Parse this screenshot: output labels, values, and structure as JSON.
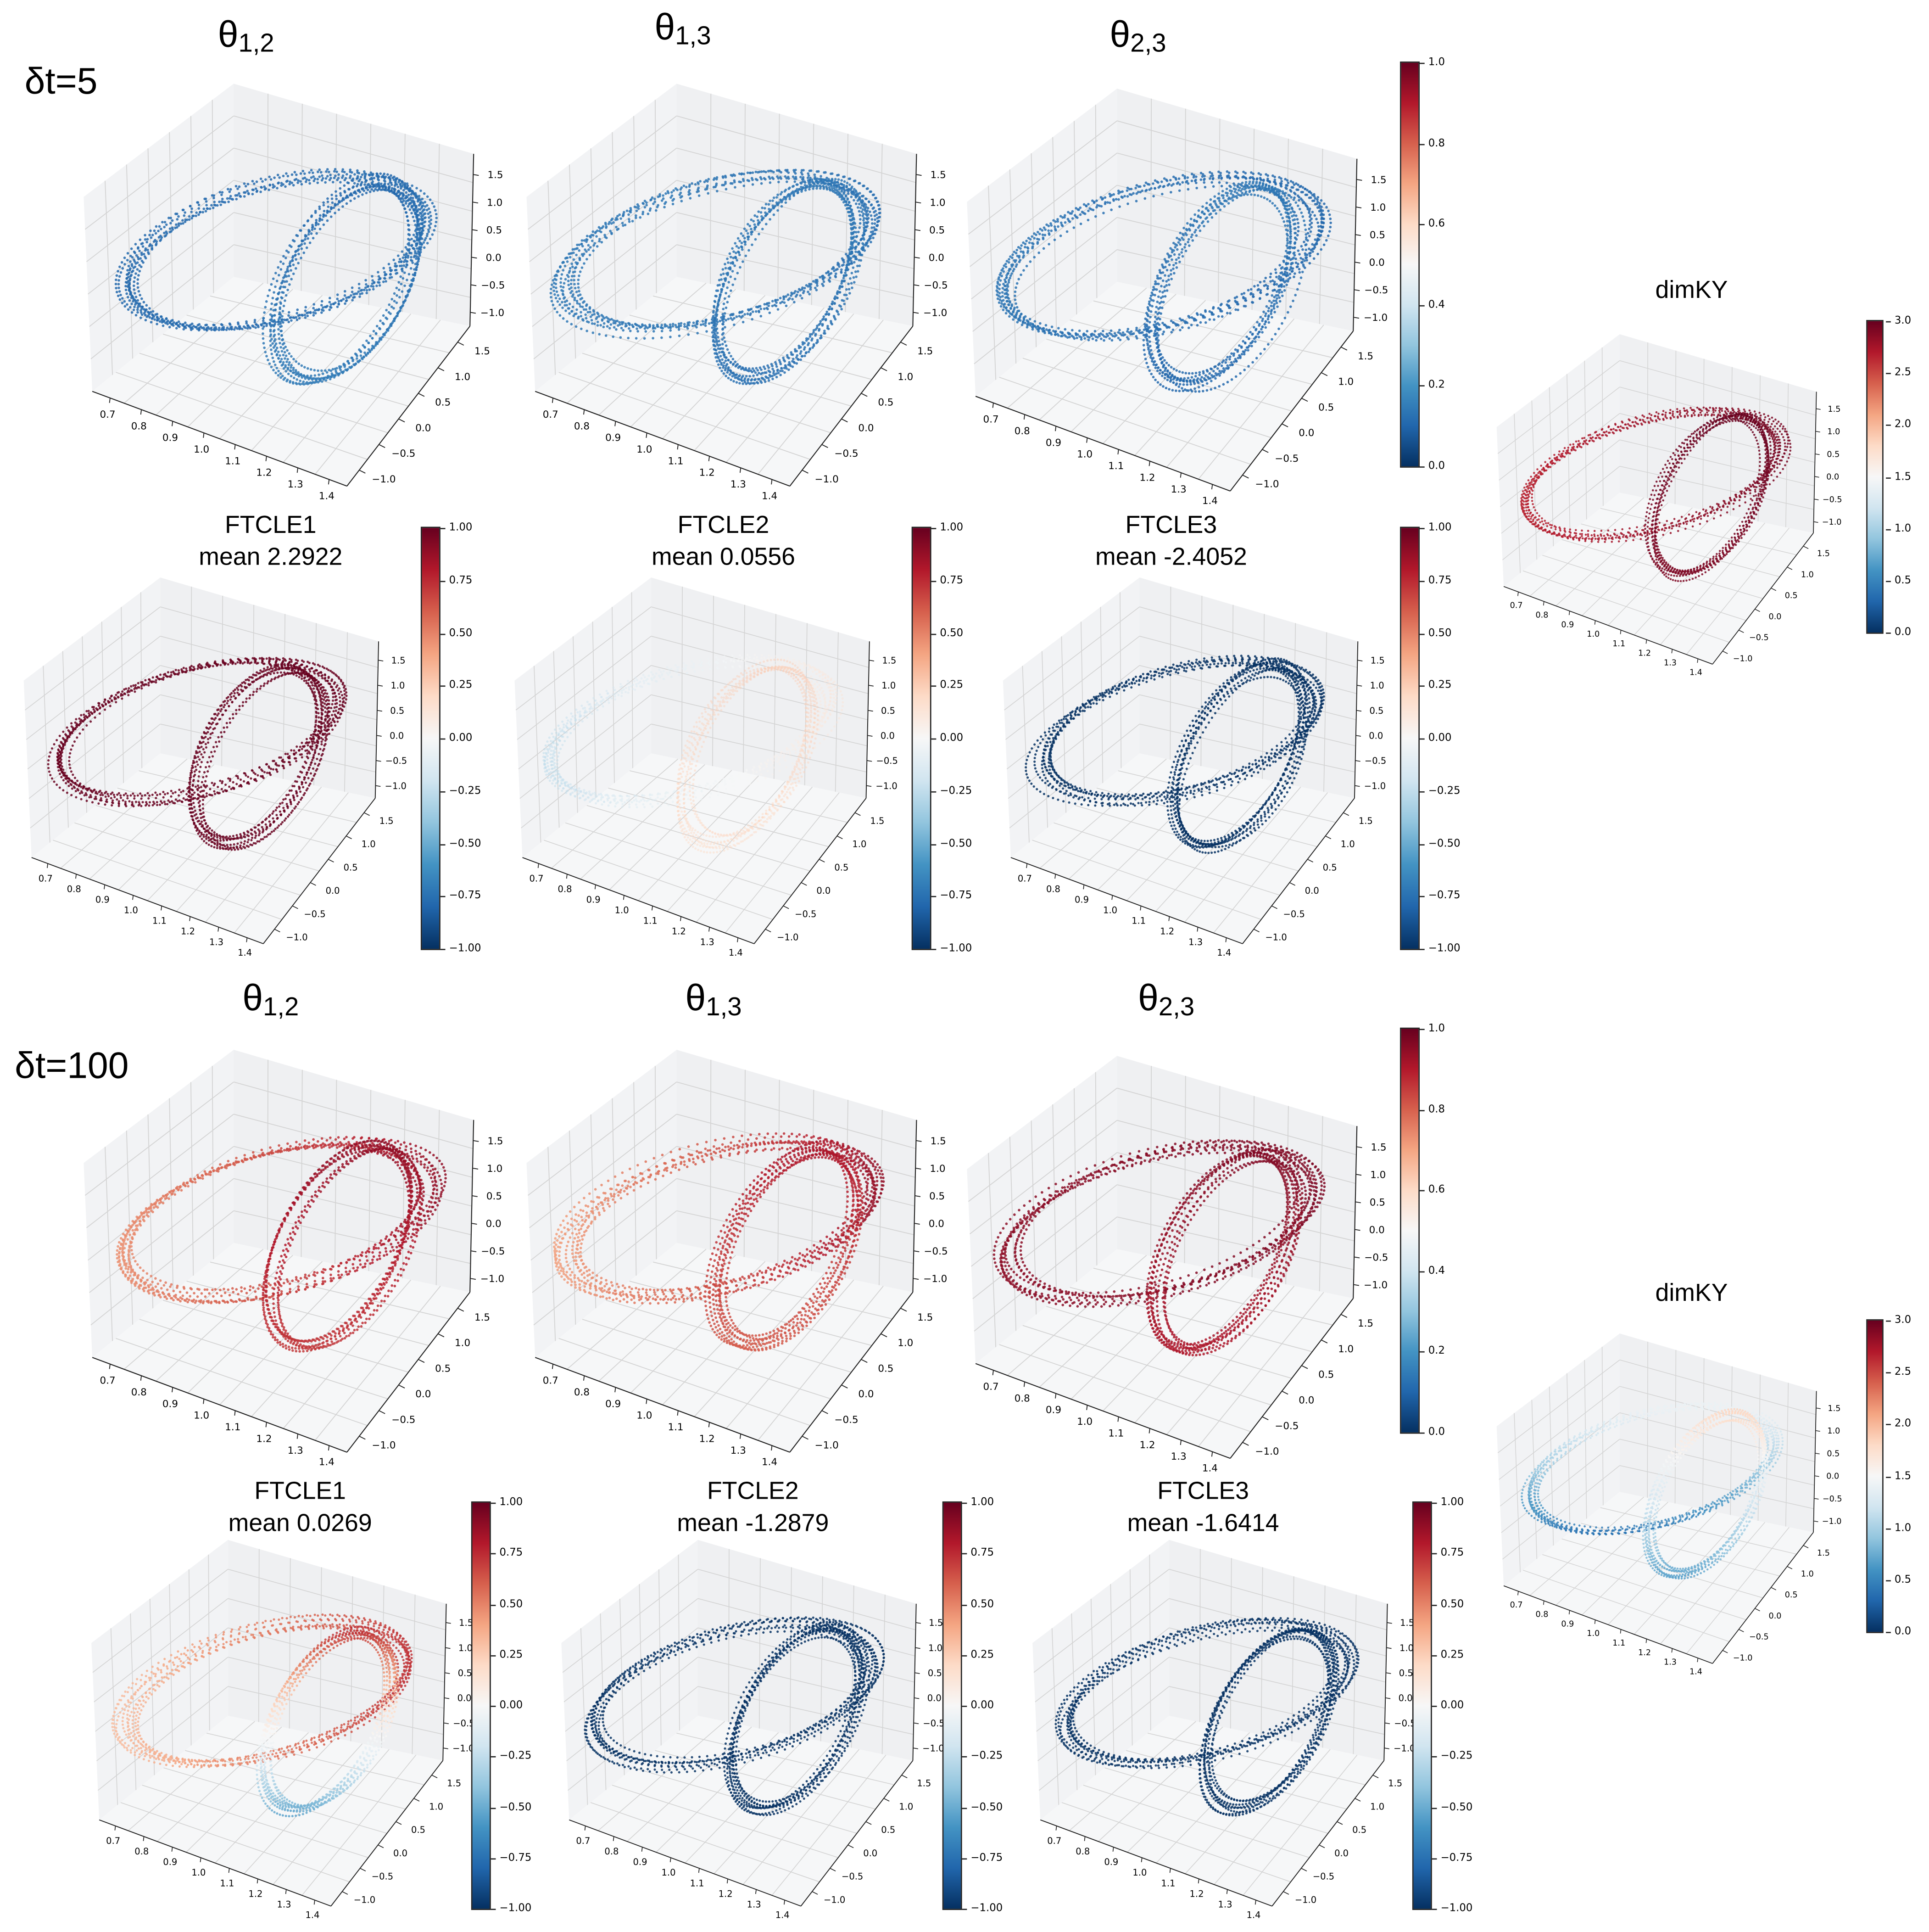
{
  "row_labels": [
    "δt=5",
    "δt=100"
  ],
  "chart_data": [
    {
      "type": "scatter3d",
      "title": "θ",
      "title_sub": "1,2",
      "xticks": [
        "0.7",
        "0.8",
        "0.9",
        "1.0",
        "1.1",
        "1.2",
        "1.3",
        "1.4"
      ],
      "yticks": [
        "−1.0",
        "−0.5",
        "0.0",
        "0.5",
        "1.0",
        "1.5"
      ],
      "zticks": [
        "−1.0",
        "−0.5",
        "0.0",
        "0.5",
        "1.0",
        "1.5"
      ],
      "crange": [
        0,
        1
      ],
      "colors": {
        "big": {
          "dir": "x",
          "values": [
            0.1,
            0.12
          ]
        },
        "small": {
          "dir": "y",
          "values": [
            0.1,
            0.15
          ]
        }
      }
    },
    {
      "type": "scatter3d",
      "title": "θ",
      "title_sub": "1,3",
      "xticks": [
        "0.7",
        "0.8",
        "0.9",
        "1.0",
        "1.1",
        "1.2",
        "1.3",
        "1.4"
      ],
      "yticks": [
        "−1.0",
        "−0.5",
        "0.0",
        "0.5",
        "1.0",
        "1.5"
      ],
      "zticks": [
        "−1.0",
        "−0.5",
        "0.0",
        "0.5",
        "1.0",
        "1.5"
      ],
      "crange": [
        0,
        1
      ],
      "colors": {
        "big": {
          "dir": "x",
          "values": [
            0.14,
            0.12
          ]
        },
        "small": {
          "dir": "y",
          "values": [
            0.14,
            0.12
          ]
        }
      }
    },
    {
      "type": "scatter3d",
      "title": "θ",
      "title_sub": "2,3",
      "xticks": [
        "0.7",
        "0.8",
        "0.9",
        "1.0",
        "1.1",
        "1.2",
        "1.3",
        "1.4"
      ],
      "yticks": [
        "−1.0",
        "−0.5",
        "0.0",
        "0.5",
        "1.0",
        "1.5"
      ],
      "zticks": [
        "−1.0",
        "−0.5",
        "0.0",
        "0.5",
        "1.0",
        "1.5"
      ],
      "crange": [
        0,
        1
      ],
      "colors": {
        "big": {
          "dir": "x",
          "values": [
            0.13,
            0.1
          ]
        },
        "small": {
          "dir": "y",
          "values": [
            0.14,
            0.1
          ]
        }
      },
      "colorbar": {
        "ticks": [
          "0.0",
          "0.2",
          "0.4",
          "0.6",
          "0.8",
          "1.0"
        ]
      }
    },
    {
      "type": "scatter3d",
      "title": "dimKY",
      "xticks": [
        "0.7",
        "0.8",
        "0.9",
        "1.0",
        "1.1",
        "1.2",
        "1.3",
        "1.4"
      ],
      "yticks": [
        "−1.0",
        "−0.5",
        "0.0",
        "0.5",
        "1.0",
        "1.5"
      ],
      "zticks": [
        "−1.0",
        "−0.5",
        "0.0",
        "0.5",
        "1.0",
        "1.5"
      ],
      "crange": [
        0,
        3
      ],
      "colors": {
        "big": {
          "dir": "x",
          "values": [
            2.65,
            2.95
          ]
        },
        "small": {
          "dir": "y",
          "values": [
            3.0,
            2.9
          ]
        }
      },
      "colorbar": {
        "ticks": [
          "0.0",
          "0.5",
          "1.0",
          "1.5",
          "2.0",
          "2.5",
          "3.0"
        ]
      }
    },
    {
      "type": "scatter3d",
      "title": "FTCLE1",
      "subtitle": "mean 2.2922",
      "xticks": [
        "0.7",
        "0.8",
        "0.9",
        "1.0",
        "1.1",
        "1.2",
        "1.3",
        "1.4"
      ],
      "yticks": [
        "−1.0",
        "−0.5",
        "0.0",
        "0.5",
        "1.0",
        "1.5"
      ],
      "zticks": [
        "−1.0",
        "−0.5",
        "0.0",
        "0.5",
        "1.0",
        "1.5"
      ],
      "crange": [
        -1,
        1
      ],
      "colors": {
        "big": {
          "dir": "x",
          "values": [
            1,
            1
          ]
        },
        "small": {
          "dir": "y",
          "values": [
            1,
            1
          ]
        }
      },
      "colorbar": {
        "ticks": [
          "−1.00",
          "−0.75",
          "−0.50",
          "−0.25",
          "0.00",
          "0.25",
          "0.50",
          "0.75",
          "1.00"
        ]
      }
    },
    {
      "type": "scatter3d",
      "title": "FTCLE2",
      "subtitle": "mean 0.0556",
      "xticks": [
        "0.7",
        "0.8",
        "0.9",
        "1.0",
        "1.1",
        "1.2",
        "1.3",
        "1.4"
      ],
      "yticks": [
        "−1.0",
        "−0.5",
        "0.0",
        "0.5",
        "1.0",
        "1.5"
      ],
      "zticks": [
        "−1.0",
        "−0.5",
        "0.0",
        "0.5",
        "1.0",
        "1.5"
      ],
      "crange": [
        -1,
        1
      ],
      "colors": {
        "big": {
          "dir": "x",
          "values": [
            -0.3,
            0.15
          ]
        },
        "small": {
          "dir": "y",
          "values": [
            0.25,
            0.2
          ]
        }
      },
      "colorbar": {
        "ticks": [
          "−1.00",
          "−0.75",
          "−0.50",
          "−0.25",
          "0.00",
          "0.25",
          "0.50",
          "0.75",
          "1.00"
        ]
      }
    },
    {
      "type": "scatter3d",
      "title": "FTCLE3",
      "subtitle": "mean -2.4052",
      "xticks": [
        "0.7",
        "0.8",
        "0.9",
        "1.0",
        "1.1",
        "1.2",
        "1.3",
        "1.4"
      ],
      "yticks": [
        "−1.0",
        "−0.5",
        "0.0",
        "0.5",
        "1.0",
        "1.5"
      ],
      "zticks": [
        "−1.0",
        "−0.5",
        "0.0",
        "0.5",
        "1.0",
        "1.5"
      ],
      "crange": [
        -1,
        1
      ],
      "colors": {
        "big": {
          "dir": "x",
          "values": [
            -1,
            -1
          ]
        },
        "small": {
          "dir": "y",
          "values": [
            -1,
            -1
          ]
        }
      },
      "colorbar": {
        "ticks": [
          "−1.00",
          "−0.75",
          "−0.50",
          "−0.25",
          "0.00",
          "0.25",
          "0.50",
          "0.75",
          "1.00"
        ]
      }
    },
    {
      "type": "scatter3d",
      "title": "θ",
      "title_sub": "1,2",
      "xticks": [
        "0.7",
        "0.8",
        "0.9",
        "1.0",
        "1.1",
        "1.2",
        "1.3",
        "1.4"
      ],
      "yticks": [
        "−1.0",
        "−0.5",
        "0.0",
        "0.5",
        "1.0",
        "1.5"
      ],
      "zticks": [
        "−1.0",
        "−0.5",
        "0.0",
        "0.5",
        "1.0",
        "1.5"
      ],
      "crange": [
        0,
        1
      ],
      "colors": {
        "big": {
          "dir": "x",
          "values": [
            0.72,
            0.95
          ]
        },
        "small": {
          "dir": "y",
          "values": [
            0.95,
            0.85
          ]
        }
      }
    },
    {
      "type": "scatter3d",
      "title": "θ",
      "title_sub": "1,3",
      "xticks": [
        "0.7",
        "0.8",
        "0.9",
        "1.0",
        "1.1",
        "1.2",
        "1.3",
        "1.4"
      ],
      "yticks": [
        "−1.0",
        "−0.5",
        "0.0",
        "0.5",
        "1.0",
        "1.5"
      ],
      "zticks": [
        "−1.0",
        "−0.5",
        "0.0",
        "0.5",
        "1.0",
        "1.5"
      ],
      "crange": [
        0,
        1
      ],
      "colors": {
        "big": {
          "dir": "x",
          "values": [
            0.7,
            0.95
          ]
        },
        "small": {
          "dir": "y",
          "values": [
            0.92,
            0.8
          ]
        }
      }
    },
    {
      "type": "scatter3d",
      "title": "θ",
      "title_sub": "2,3",
      "xticks": [
        "0.7",
        "0.8",
        "0.9",
        "1.0",
        "1.1",
        "1.2",
        "1.3",
        "1.4"
      ],
      "yticks": [
        "−1.0",
        "−0.5",
        "0.0",
        "0.5",
        "1.0",
        "1.5"
      ],
      "zticks": [
        "−1.0",
        "−0.5",
        "0.0",
        "0.5",
        "1.0",
        "1.5"
      ],
      "crange": [
        0,
        1
      ],
      "colors": {
        "big": {
          "dir": "x",
          "values": [
            0.95,
            0.97
          ]
        },
        "small": {
          "dir": "y",
          "values": [
            0.97,
            0.9
          ]
        }
      },
      "colorbar": {
        "ticks": [
          "0.0",
          "0.2",
          "0.4",
          "0.6",
          "0.8",
          "1.0"
        ]
      }
    },
    {
      "type": "scatter3d",
      "title": "dimKY",
      "xticks": [
        "0.7",
        "0.8",
        "0.9",
        "1.0",
        "1.1",
        "1.2",
        "1.3",
        "1.4"
      ],
      "yticks": [
        "−1.0",
        "−0.5",
        "0.0",
        "0.5",
        "1.0",
        "1.5"
      ],
      "zticks": [
        "−1.0",
        "−0.5",
        "0.0",
        "0.5",
        "1.0",
        "1.5"
      ],
      "crange": [
        0,
        3
      ],
      "colors": {
        "big": {
          "dir": "y",
          "values": [
            1.4,
            0.4
          ]
        },
        "small": {
          "dir": "y",
          "values": [
            1.9,
            0.6
          ]
        }
      },
      "colorbar": {
        "ticks": [
          "0.0",
          "0.5",
          "1.0",
          "1.5",
          "2.0",
          "2.5",
          "3.0"
        ]
      }
    },
    {
      "type": "scatter3d",
      "title": "FTCLE1",
      "subtitle": "mean 0.0269",
      "xticks": [
        "0.7",
        "0.8",
        "0.9",
        "1.0",
        "1.1",
        "1.2",
        "1.3",
        "1.4"
      ],
      "yticks": [
        "−1.0",
        "−0.5",
        "0.0",
        "0.5",
        "1.0",
        "1.5"
      ],
      "zticks": [
        "−1.0",
        "−0.5",
        "0.0",
        "0.5",
        "1.0",
        "1.5"
      ],
      "crange": [
        -1,
        1
      ],
      "colors": {
        "big": {
          "dir": "x",
          "values": [
            0.3,
            0.75
          ]
        },
        "small": {
          "dir": "y",
          "values": [
            0.85,
            -0.6
          ]
        }
      },
      "colorbar": {
        "ticks": [
          "−1.00",
          "−0.75",
          "−0.50",
          "−0.25",
          "0.00",
          "0.25",
          "0.50",
          "0.75",
          "1.00"
        ]
      }
    },
    {
      "type": "scatter3d",
      "title": "FTCLE2",
      "subtitle": "mean -1.2879",
      "xticks": [
        "0.7",
        "0.8",
        "0.9",
        "1.0",
        "1.1",
        "1.2",
        "1.3",
        "1.4"
      ],
      "yticks": [
        "−1.0",
        "−0.5",
        "0.0",
        "0.5",
        "1.0",
        "1.5"
      ],
      "zticks": [
        "−1.0",
        "−0.5",
        "0.0",
        "0.5",
        "1.0",
        "1.5"
      ],
      "crange": [
        -1,
        1
      ],
      "colors": {
        "big": {
          "dir": "x",
          "values": [
            -1,
            -1
          ]
        },
        "small": {
          "dir": "y",
          "values": [
            -1,
            -1
          ]
        }
      },
      "colorbar": {
        "ticks": [
          "−1.00",
          "−0.75",
          "−0.50",
          "−0.25",
          "0.00",
          "0.25",
          "0.50",
          "0.75",
          "1.00"
        ]
      }
    },
    {
      "type": "scatter3d",
      "title": "FTCLE3",
      "subtitle": "mean -1.6414",
      "xticks": [
        "0.7",
        "0.8",
        "0.9",
        "1.0",
        "1.1",
        "1.2",
        "1.3",
        "1.4"
      ],
      "yticks": [
        "−1.0",
        "−0.5",
        "0.0",
        "0.5",
        "1.0",
        "1.5"
      ],
      "zticks": [
        "−1.0",
        "−0.5",
        "0.0",
        "0.5",
        "1.0",
        "1.5"
      ],
      "crange": [
        -1,
        1
      ],
      "colors": {
        "big": {
          "dir": "x",
          "values": [
            -1,
            -1
          ]
        },
        "small": {
          "dir": "y",
          "values": [
            -1,
            -1
          ]
        }
      },
      "colorbar": {
        "ticks": [
          "−1.00",
          "−0.75",
          "−0.50",
          "−0.25",
          "0.00",
          "0.25",
          "0.50",
          "0.75",
          "1.00"
        ]
      }
    }
  ]
}
